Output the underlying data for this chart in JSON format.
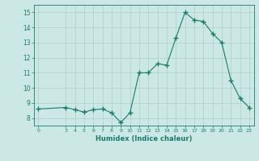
{
  "title": "",
  "xlabel": "Humidex (Indice chaleur)",
  "x_values": [
    0,
    3,
    4,
    5,
    6,
    7,
    8,
    9,
    10,
    11,
    12,
    13,
    14,
    15,
    16,
    17,
    18,
    19,
    20,
    21,
    22,
    23
  ],
  "y_values": [
    8.6,
    8.7,
    8.55,
    8.4,
    8.55,
    8.6,
    8.35,
    7.7,
    8.35,
    11.0,
    11.0,
    11.6,
    11.5,
    13.3,
    15.0,
    14.5,
    14.4,
    13.6,
    13.0,
    10.5,
    9.3,
    8.7
  ],
  "ylim": [
    7.5,
    15.5
  ],
  "yticks": [
    8,
    9,
    10,
    11,
    12,
    13,
    14,
    15
  ],
  "xlim": [
    -0.5,
    23.5
  ],
  "xticks": [
    0,
    3,
    4,
    5,
    6,
    7,
    8,
    9,
    10,
    11,
    12,
    13,
    14,
    15,
    16,
    17,
    18,
    19,
    20,
    21,
    22,
    23
  ],
  "line_color": "#1a7a6e",
  "marker": "+",
  "marker_size": 4.0,
  "marker_lw": 1.0,
  "bg_color": "#cce8e4",
  "grid_color": "#b0cdc9",
  "axes_color": "#1a7a6e"
}
